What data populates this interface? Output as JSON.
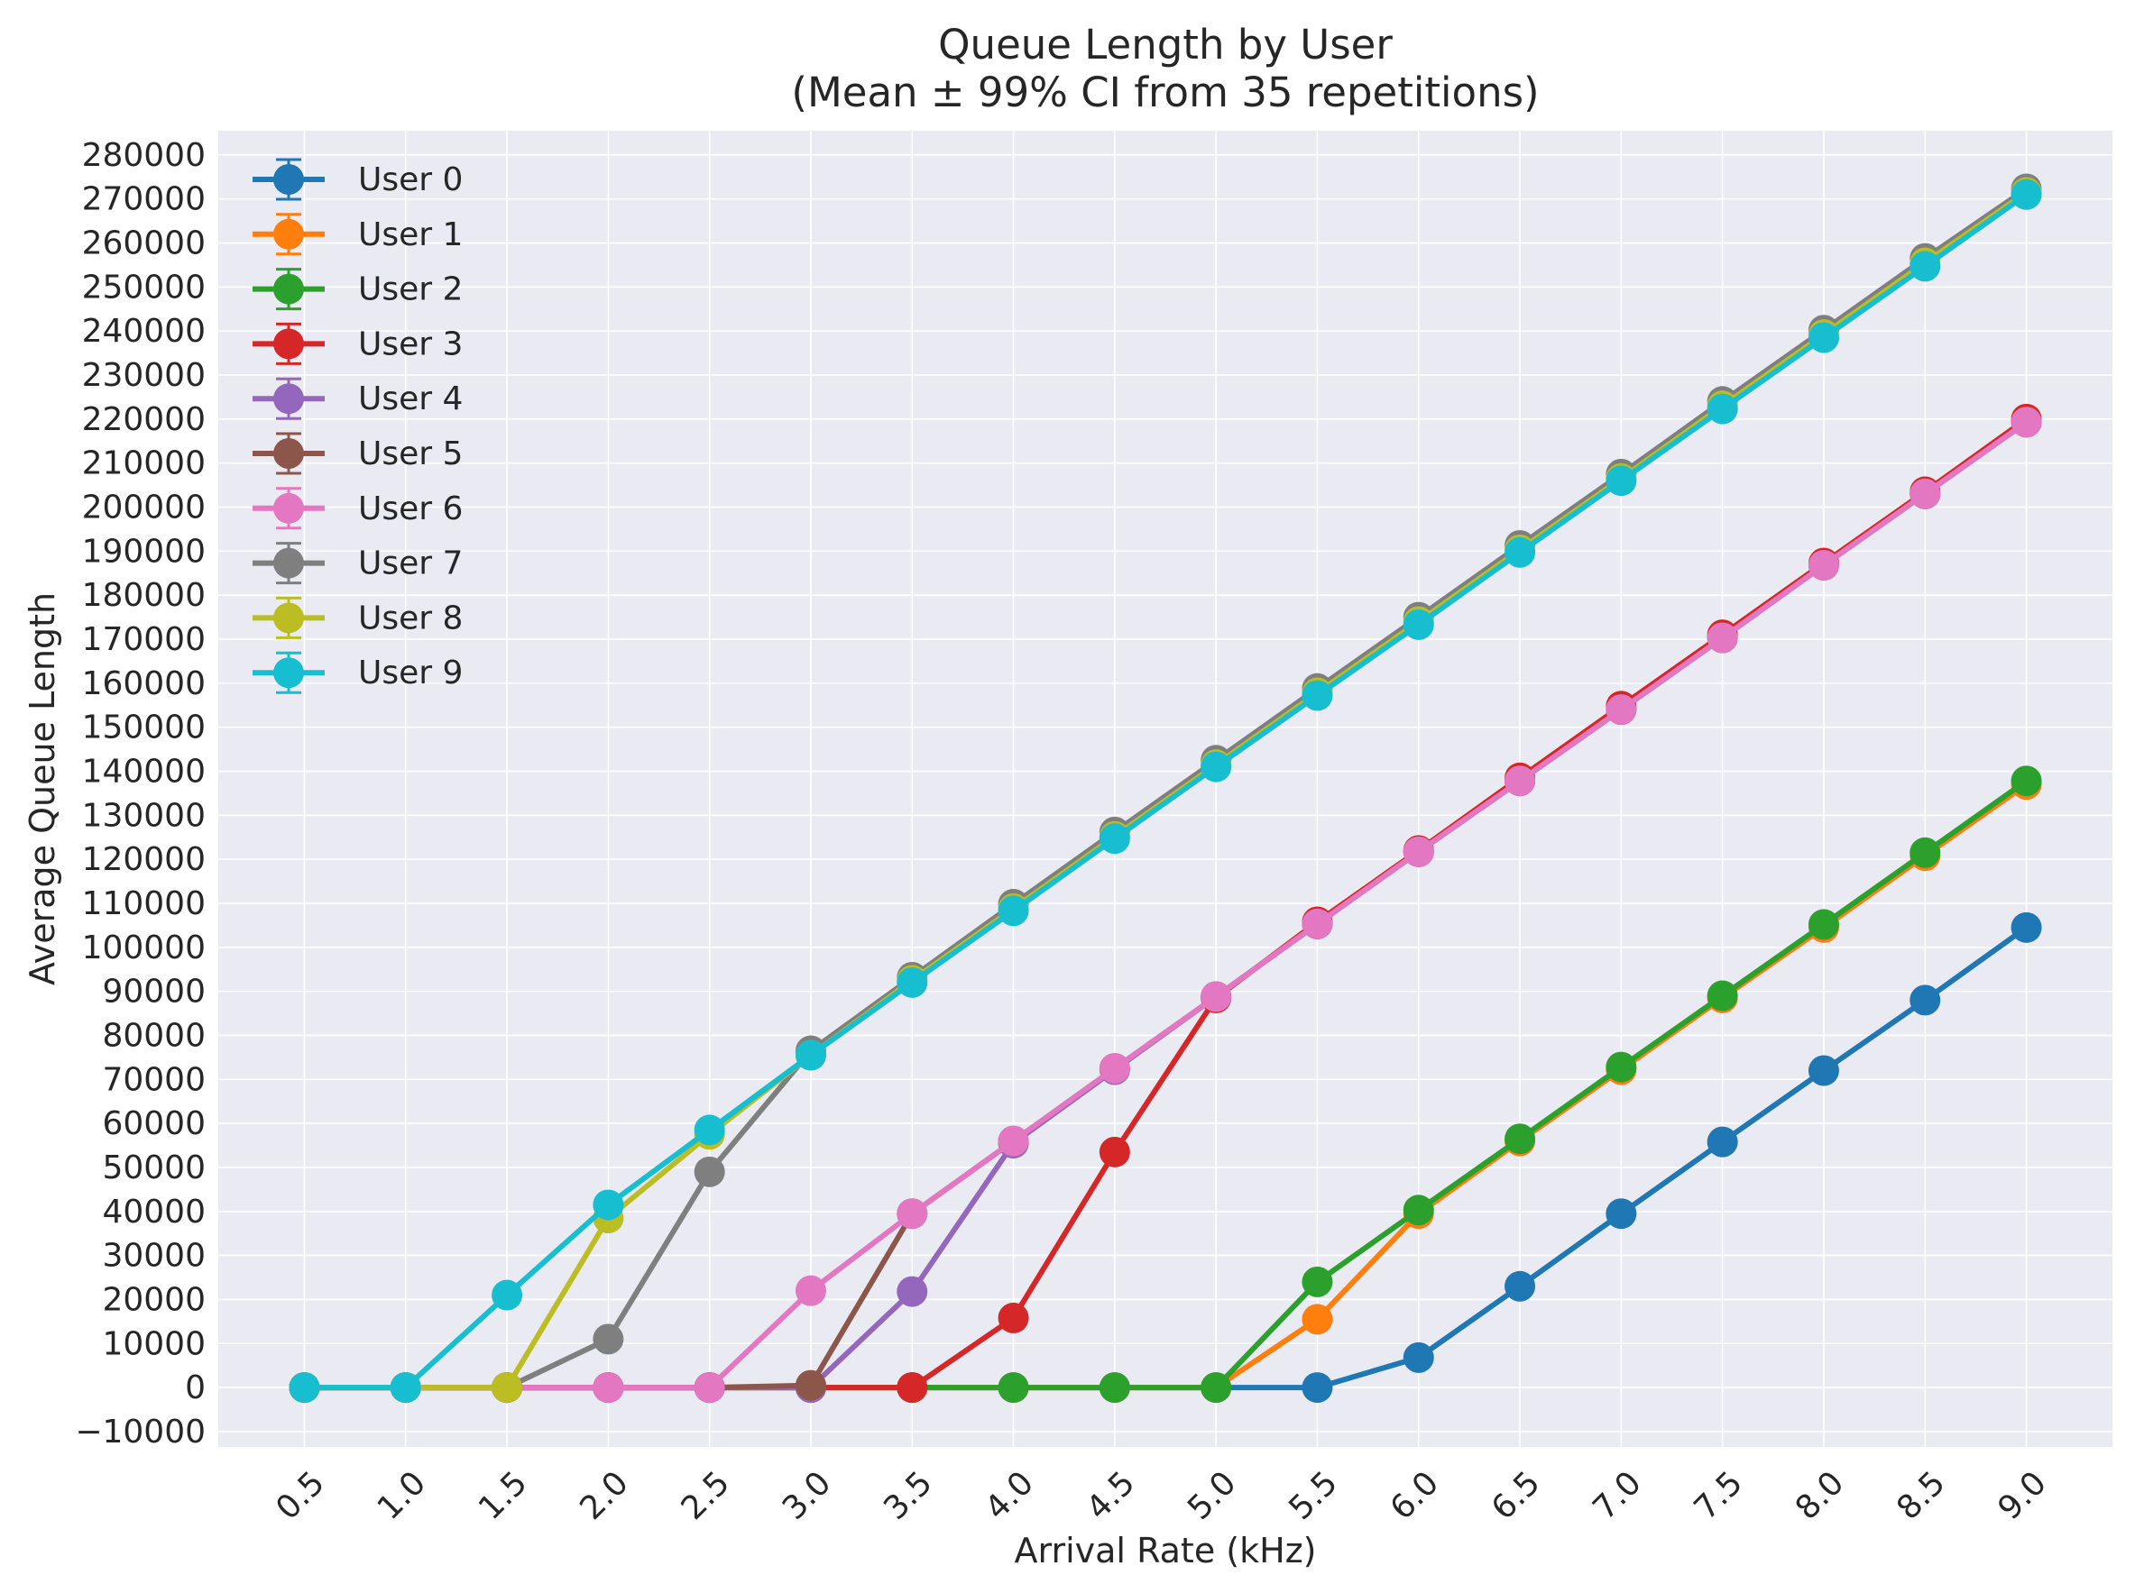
{
  "chart_data": {
    "type": "line",
    "title": "Queue Length by User",
    "subtitle": "(Mean ± 99% CI from 35 repetitions)",
    "xlabel": "Arrival Rate (kHz)",
    "ylabel": "Average Queue Length",
    "x": [
      0.5,
      1.0,
      1.5,
      2.0,
      2.5,
      3.0,
      3.5,
      4.0,
      4.5,
      5.0,
      5.5,
      6.0,
      6.5,
      7.0,
      7.5,
      8.0,
      8.5,
      9.0
    ],
    "x_tick_labels": [
      "0.5",
      "1.0",
      "1.5",
      "2.0",
      "2.5",
      "3.0",
      "3.5",
      "4.0",
      "4.5",
      "5.0",
      "5.5",
      "6.0",
      "6.5",
      "7.0",
      "7.5",
      "8.0",
      "8.5",
      "9.0"
    ],
    "y_ticks": [
      -10000,
      0,
      10000,
      20000,
      30000,
      40000,
      50000,
      60000,
      70000,
      80000,
      90000,
      100000,
      110000,
      120000,
      130000,
      140000,
      150000,
      160000,
      170000,
      180000,
      190000,
      200000,
      210000,
      220000,
      230000,
      240000,
      250000,
      260000,
      270000,
      280000
    ],
    "y_tick_labels": [
      "−10000",
      "0",
      "10000",
      "20000",
      "30000",
      "40000",
      "50000",
      "60000",
      "70000",
      "80000",
      "90000",
      "100000",
      "110000",
      "120000",
      "130000",
      "140000",
      "150000",
      "160000",
      "170000",
      "180000",
      "190000",
      "200000",
      "210000",
      "220000",
      "230000",
      "240000",
      "250000",
      "260000",
      "270000",
      "280000"
    ],
    "xlim": [
      0.075,
      9.425
    ],
    "ylim": [
      -13500,
      285500
    ],
    "grid": true,
    "legend_position": "top-left",
    "series": [
      {
        "name": "User 0",
        "color": "#1f77b4",
        "values": [
          0,
          0,
          0,
          0,
          0,
          0,
          0,
          0,
          0,
          0,
          0,
          6800,
          23000,
          39500,
          55800,
          72000,
          88000,
          104500
        ]
      },
      {
        "name": "User 1",
        "color": "#ff7f0e",
        "values": [
          0,
          0,
          0,
          0,
          0,
          0,
          0,
          0,
          0,
          0,
          15500,
          39500,
          56000,
          72200,
          88500,
          104500,
          120800,
          137000
        ]
      },
      {
        "name": "User 2",
        "color": "#2ca02c",
        "values": [
          0,
          0,
          0,
          0,
          0,
          0,
          0,
          0,
          0,
          0,
          24000,
          40300,
          56500,
          72800,
          89000,
          105200,
          121500,
          137800
        ]
      },
      {
        "name": "User 3",
        "color": "#d62728",
        "values": [
          0,
          0,
          0,
          0,
          0,
          0,
          0,
          15800,
          53500,
          88500,
          105800,
          122000,
          138500,
          154800,
          171000,
          187300,
          203500,
          220000
        ]
      },
      {
        "name": "User 4",
        "color": "#9467bd",
        "values": [
          0,
          0,
          0,
          0,
          0,
          0,
          21800,
          55500,
          72200,
          88800,
          105300,
          121700,
          137800,
          154000,
          170300,
          186800,
          203000,
          219300
        ]
      },
      {
        "name": "User 5",
        "color": "#8c564b",
        "values": [
          0,
          0,
          0,
          0,
          0,
          500,
          39500,
          56000,
          72500,
          88800,
          105300,
          121700,
          137800,
          154000,
          170300,
          186800,
          203000,
          219300
        ]
      },
      {
        "name": "User 6",
        "color": "#e377c2",
        "values": [
          0,
          0,
          0,
          0,
          0,
          22000,
          39500,
          56000,
          72500,
          88800,
          105300,
          121700,
          137800,
          154000,
          170300,
          186800,
          203000,
          219300
        ]
      },
      {
        "name": "User 7",
        "color": "#7f7f7f",
        "values": [
          0,
          0,
          0,
          11000,
          49000,
          76500,
          93200,
          109800,
          126200,
          142500,
          158800,
          175000,
          191300,
          207500,
          224000,
          240200,
          256500,
          272300
        ]
      },
      {
        "name": "User 8",
        "color": "#bcbd22",
        "values": [
          0,
          0,
          0,
          38500,
          57500,
          75500,
          92500,
          108800,
          125200,
          141500,
          157800,
          174000,
          190300,
          206500,
          223000,
          239200,
          255500,
          271500
        ]
      },
      {
        "name": "User 9",
        "color": "#17becf",
        "values": [
          0,
          0,
          21000,
          41500,
          58500,
          75500,
          92000,
          108300,
          124700,
          141000,
          157200,
          173300,
          189700,
          206000,
          222300,
          238500,
          254700,
          271000
        ]
      }
    ]
  }
}
